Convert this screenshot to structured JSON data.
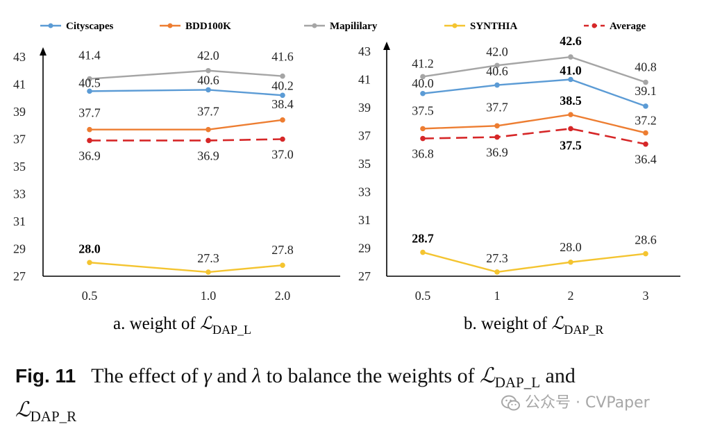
{
  "legend": [
    {
      "name": "Cityscapes",
      "color": "#5b9bd5",
      "dashed": false
    },
    {
      "name": "BDD100K",
      "color": "#ed7d31",
      "dashed": false
    },
    {
      "name": "Mapililary",
      "color": "#a5a5a5",
      "dashed": false
    },
    {
      "name": "SYNTHIA",
      "color": "#f4c430",
      "dashed": false
    },
    {
      "name": "Average",
      "color": "#d62728",
      "dashed": true
    }
  ],
  "chart_data": [
    {
      "type": "line",
      "title": "a. weight of ℒDAP_L",
      "xlabel_prefix": "a. weight of ",
      "xlabel_symbol": "ℒ",
      "xlabel_subscript": "DAP_L",
      "ylabel": "",
      "categories": [
        "0.5",
        "1.0",
        "2.0"
      ],
      "ylim": [
        27,
        43
      ],
      "yticks": [
        27,
        29,
        31,
        33,
        35,
        37,
        39,
        41,
        43
      ],
      "series": [
        {
          "name": "Cityscapes",
          "values": [
            40.5,
            40.6,
            40.2
          ],
          "labels": [
            "40.5",
            "40.6",
            "40.2"
          ],
          "bold": [
            false,
            false,
            false
          ]
        },
        {
          "name": "BDD100K",
          "values": [
            37.7,
            37.7,
            38.4
          ],
          "labels": [
            "37.7",
            "37.7",
            "38.4"
          ],
          "bold": [
            false,
            false,
            false
          ]
        },
        {
          "name": "Mapililary",
          "values": [
            41.4,
            42.0,
            41.6
          ],
          "labels": [
            "41.4",
            "42.0",
            "41.6"
          ],
          "bold": [
            false,
            false,
            false
          ]
        },
        {
          "name": "SYNTHIA",
          "values": [
            28.0,
            27.3,
            27.8
          ],
          "labels": [
            "28.0",
            "27.3",
            "27.8"
          ],
          "bold": [
            true,
            false,
            false
          ]
        },
        {
          "name": "Average",
          "values": [
            36.9,
            36.9,
            37.0
          ],
          "labels": [
            "36.9",
            "36.9",
            "37.0"
          ],
          "bold": [
            false,
            false,
            false
          ]
        }
      ]
    },
    {
      "type": "line",
      "title": "b. weight of ℒDAP_R",
      "xlabel_prefix": "b. weight of ",
      "xlabel_symbol": "ℒ",
      "xlabel_subscript": "DAP_R",
      "ylabel": "",
      "categories": [
        "0.5",
        "1",
        "2",
        "3"
      ],
      "ylim": [
        27,
        43
      ],
      "yticks": [
        27,
        29,
        31,
        33,
        35,
        37,
        39,
        41,
        43
      ],
      "series": [
        {
          "name": "Cityscapes",
          "values": [
            40.0,
            40.6,
            41.0,
            39.1
          ],
          "labels": [
            "40.0",
            "40.6",
            "41.0",
            "39.1"
          ],
          "bold": [
            false,
            false,
            true,
            false
          ]
        },
        {
          "name": "BDD100K",
          "values": [
            37.5,
            37.7,
            38.5,
            37.2
          ],
          "labels": [
            "37.5",
            "37.7",
            "38.5",
            "37.2"
          ],
          "bold": [
            false,
            false,
            true,
            false
          ]
        },
        {
          "name": "Mapililary",
          "values": [
            41.2,
            42.0,
            42.6,
            40.8
          ],
          "labels": [
            "41.2",
            "42.0",
            "42.6",
            "40.8"
          ],
          "bold": [
            false,
            false,
            true,
            false
          ]
        },
        {
          "name": "SYNTHIA",
          "values": [
            28.7,
            27.3,
            28.0,
            28.6
          ],
          "labels": [
            "28.7",
            "27.3",
            "28.0",
            "28.6"
          ],
          "bold": [
            true,
            false,
            false,
            false
          ]
        },
        {
          "name": "Average",
          "values": [
            36.8,
            36.9,
            37.5,
            36.4
          ],
          "labels": [
            "36.8",
            "36.9",
            "37.5",
            "36.4"
          ],
          "bold": [
            false,
            false,
            true,
            false
          ]
        }
      ]
    }
  ],
  "caption": {
    "label": "Fig. 11",
    "part1": "The effect of ",
    "gamma": "γ",
    "part2": " and ",
    "lambda": "λ",
    "part3": " to balance the weights of ",
    "symbol": "ℒ",
    "sub1": "DAP_L",
    "part4": " and",
    "sub2": "DAP_R"
  },
  "watermark": {
    "text": "公众号 · CVPaper"
  }
}
